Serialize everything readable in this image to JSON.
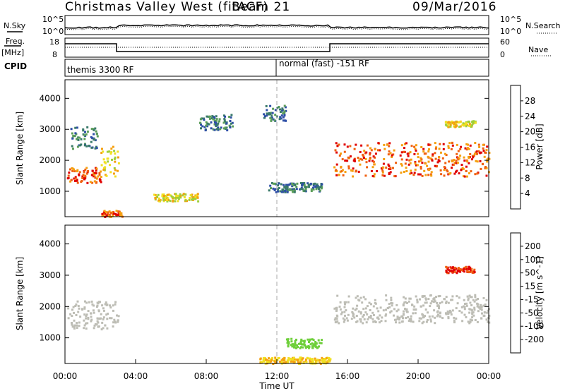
{
  "header": {
    "radar": "Christmas Valley West (fitACF)",
    "beam": "Beam 21",
    "date": "09/Mar/2016"
  },
  "left_labels": {
    "nsky": "N.Sky",
    "freq": "Freq.",
    "freq_unit": "[MHz]",
    "cpid": "CPID"
  },
  "right_labels": {
    "nsearch": "N.Search",
    "nave": "Nave"
  },
  "strip_ticks": {
    "noise_left": [
      "10^5",
      "10^0"
    ],
    "noise_right": [
      "10^5",
      "10^0"
    ],
    "freq_left": [
      "18",
      "8"
    ],
    "freq_right": [
      "60",
      "0"
    ]
  },
  "cpid_labels": [
    "themis 3300 RF",
    "normal (fast) -151 RF"
  ],
  "colors": {
    "power_scale": [
      "#0000f0",
      "#2d4ea6",
      "#3a7a6a",
      "#5c9e5a",
      "#9ecf3a",
      "#f0e020",
      "#f5a010",
      "#f06010",
      "#e00000"
    ],
    "velocity_scale": [
      "#e00000",
      "#f06010",
      "#f5a010",
      "#f0e020",
      "#b4b4b4",
      "#b4b4b4",
      "#6ecf3a",
      "#3aa060",
      "#4a6fb0",
      "#2030c0"
    ]
  },
  "chart_data": [
    {
      "type": "heatmap",
      "name": "power-panel",
      "ylabel": "Slant Range [km]",
      "x_range": [
        "00:00",
        "24:00"
      ],
      "ylim": [
        180,
        4600
      ],
      "yticks": [
        "1000",
        "2000",
        "3000",
        "4000"
      ],
      "colorbar": {
        "label": "Power [dB]",
        "ticks": [
          "4",
          "8",
          "12",
          "16",
          "20",
          "24",
          "28"
        ],
        "range": [
          0,
          32
        ]
      },
      "regions": [
        {
          "t0": 0.1,
          "t1": 2.0,
          "r0": 1300,
          "r1": 1800,
          "level": "high"
        },
        {
          "t0": 2.0,
          "t1": 3.0,
          "r0": 1500,
          "r1": 2500,
          "level": "mid"
        },
        {
          "t0": 0.3,
          "t1": 1.8,
          "r0": 2400,
          "r1": 3100,
          "level": "low"
        },
        {
          "t0": 7.6,
          "t1": 9.5,
          "r0": 3000,
          "r1": 3500,
          "level": "low"
        },
        {
          "t0": 11.2,
          "t1": 12.5,
          "r0": 3300,
          "r1": 3800,
          "level": "low"
        },
        {
          "t0": 15.2,
          "t1": 24.0,
          "r0": 1500,
          "r1": 2600,
          "level": "high"
        },
        {
          "t0": 21.5,
          "t1": 23.2,
          "r0": 3100,
          "r1": 3300,
          "level": "mid"
        },
        {
          "t0": 2.0,
          "t1": 3.2,
          "r0": 200,
          "r1": 400,
          "level": "high"
        },
        {
          "t0": 5.0,
          "t1": 7.5,
          "r0": 700,
          "r1": 950,
          "level": "mid"
        },
        {
          "t0": 11.5,
          "t1": 14.5,
          "r0": 1000,
          "r1": 1300,
          "level": "low"
        }
      ]
    },
    {
      "type": "heatmap",
      "name": "velocity-panel",
      "ylabel": "Slant Range [km]",
      "xlabel": "Time UT",
      "x_range": [
        "00:00",
        "24:00"
      ],
      "ylim": [
        180,
        4600
      ],
      "yticks": [
        "1000",
        "2000",
        "3000",
        "4000"
      ],
      "xticks": [
        "00:00",
        "04:00",
        "08:00",
        "12:00",
        "16:00",
        "20:00",
        "00:00"
      ],
      "colorbar": {
        "label": "Velocity [m s^-1]",
        "ticks": [
          "-200",
          "-100",
          "-50",
          "-15",
          "15",
          "50",
          "100",
          "200"
        ],
        "range": [
          -250,
          250
        ]
      },
      "regions": [
        {
          "t0": 0.1,
          "t1": 3.0,
          "r0": 1300,
          "r1": 2200,
          "level": "ground"
        },
        {
          "t0": 15.2,
          "t1": 24.0,
          "r0": 1500,
          "r1": 2400,
          "level": "ground"
        },
        {
          "t0": 21.5,
          "t1": 23.2,
          "r0": 3100,
          "r1": 3300,
          "level": "neg"
        },
        {
          "t0": 12.5,
          "t1": 14.5,
          "r0": 700,
          "r1": 1000,
          "level": "pos"
        },
        {
          "t0": 11.0,
          "t1": 15.0,
          "r0": 200,
          "r1": 400,
          "level": "negsmall"
        }
      ]
    }
  ]
}
